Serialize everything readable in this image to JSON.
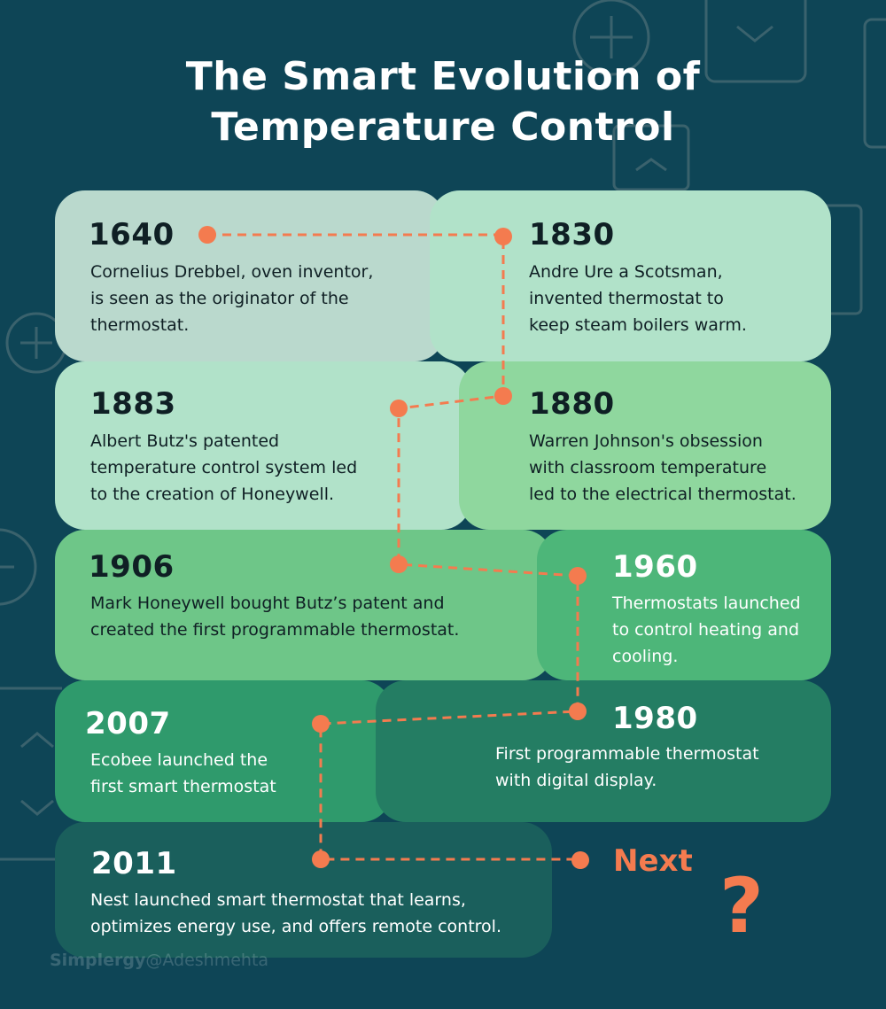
{
  "title": {
    "line1": "The Smart Evolution of",
    "line2": "Temperature Control"
  },
  "events": [
    {
      "year": "1640",
      "lines": [
        "Cornelius Drebbel, oven inventor,",
        "is seen as the originator of the",
        "thermostat."
      ]
    },
    {
      "year": "1830",
      "lines": [
        "Andre Ure a Scotsman,",
        "invented thermostat to",
        "keep steam boilers warm."
      ]
    },
    {
      "year": "1883",
      "lines": [
        "Albert Butz's patented",
        "temperature control system led",
        "to the creation of Honeywell."
      ]
    },
    {
      "year": "1880",
      "lines": [
        "Warren Johnson's obsession",
        "with classroom temperature",
        "led to the electrical thermostat."
      ]
    },
    {
      "year": "1906",
      "lines": [
        "Mark Honeywell bought Butz’s patent and",
        "created the first programmable thermostat."
      ]
    },
    {
      "year": "1960",
      "lines": [
        "Thermostats launched",
        "to control heating and",
        "cooling."
      ]
    },
    {
      "year": "2007",
      "lines": [
        "Ecobee launched the",
        "first smart thermostat"
      ]
    },
    {
      "year": "1980",
      "lines": [
        "First programmable thermostat",
        "with digital display."
      ]
    },
    {
      "year": "2011",
      "lines": [
        "Nest launched smart thermostat that learns,",
        "optimizes energy use, and offers remote control."
      ]
    }
  ],
  "next": {
    "label": "Next",
    "symbol": "?"
  },
  "watermark": {
    "brand": "Simplergy",
    "handle": "@Adeshmehta"
  },
  "colors": {
    "background": "#0e4556",
    "connector": "#f47b4f",
    "card_1640": "#bad9cd",
    "card_1830": "#b1e2c9",
    "card_1883": "#b1e2c9",
    "card_1880": "#8fd79e",
    "card_1906": "#6ec688",
    "card_1960": "#4db679",
    "card_2007": "#2f9a6c",
    "card_1980": "#247d63",
    "card_2011": "#1a5f5c"
  }
}
